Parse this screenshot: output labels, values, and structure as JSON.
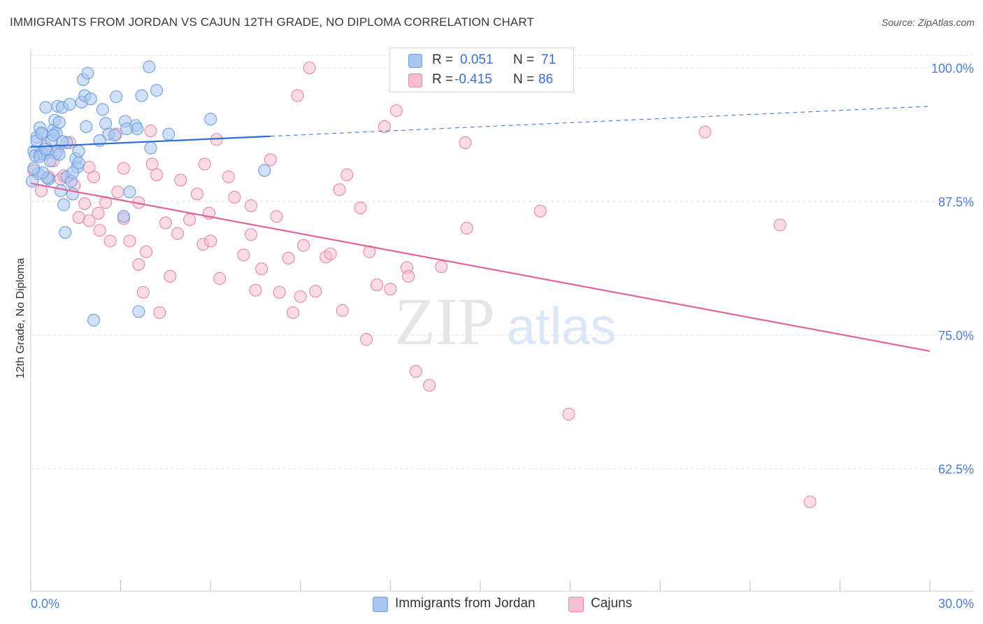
{
  "chart_data": {
    "type": "scatter",
    "title": "IMMIGRANTS FROM JORDAN VS CAJUN 12TH GRADE, NO DIPLOMA CORRELATION CHART",
    "source": "Source: ZipAtlas.com",
    "xlabel": "",
    "ylabel": "12th Grade, No Diploma",
    "xlim": [
      0,
      30
    ],
    "ylim": [
      50,
      101
    ],
    "x_tick_labels": {
      "left": "0.0%",
      "right": "30.0%"
    },
    "y_ticks": [
      {
        "value": 100,
        "label": "100.0%"
      },
      {
        "value": 87.5,
        "label": "87.5%"
      },
      {
        "value": 75,
        "label": "75.0%"
      },
      {
        "value": 62.5,
        "label": "62.5%"
      }
    ],
    "watermark": {
      "zip": "ZIP",
      "atlas": "atlas"
    },
    "legend_stats": [
      {
        "r_label": "R =",
        "r_value": "0.051",
        "n_label": "N =",
        "n_value": "71"
      },
      {
        "r_label": "R =",
        "r_value": "-0.415",
        "n_label": "N =",
        "n_value": "86"
      }
    ],
    "series": [
      {
        "name": "Immigrants from Jordan",
        "color": "#6f9fe0",
        "fill": "#a9c6f0",
        "line_color": "#2f6fd0",
        "trend": {
          "x0": 0,
          "y0": 92.6,
          "x1": 8,
          "y1": 93.6,
          "dash_x1": 30,
          "dash_y1": 96.4
        },
        "points": [
          [
            0.1,
            92.2
          ],
          [
            0.15,
            91.8
          ],
          [
            0.2,
            93.5
          ],
          [
            0.25,
            90.1
          ],
          [
            0.3,
            94.4
          ],
          [
            0.35,
            92.0
          ],
          [
            0.4,
            93.8
          ],
          [
            0.45,
            91.9
          ],
          [
            0.5,
            96.3
          ],
          [
            0.55,
            92.1
          ],
          [
            0.6,
            89.6
          ],
          [
            0.7,
            93.2
          ],
          [
            0.75,
            94.2
          ],
          [
            0.8,
            95.1
          ],
          [
            0.85,
            93.9
          ],
          [
            0.9,
            96.4
          ],
          [
            0.95,
            94.9
          ],
          [
            1.0,
            88.5
          ],
          [
            1.05,
            96.3
          ],
          [
            1.1,
            87.2
          ],
          [
            1.15,
            84.6
          ],
          [
            1.2,
            89.8
          ],
          [
            1.3,
            96.6
          ],
          [
            1.35,
            89.4
          ],
          [
            1.4,
            88.2
          ],
          [
            1.5,
            91.5
          ],
          [
            1.55,
            90.7
          ],
          [
            1.6,
            91.1
          ],
          [
            1.7,
            96.8
          ],
          [
            1.75,
            98.9
          ],
          [
            1.8,
            97.4
          ],
          [
            1.85,
            94.5
          ],
          [
            1.9,
            99.5
          ],
          [
            2.1,
            76.4
          ],
          [
            2.4,
            96.1
          ],
          [
            2.5,
            94.8
          ],
          [
            2.6,
            93.8
          ],
          [
            2.8,
            93.7
          ],
          [
            2.85,
            97.3
          ],
          [
            3.1,
            86.1
          ],
          [
            3.15,
            95.0
          ],
          [
            3.3,
            88.4
          ],
          [
            3.5,
            94.6
          ],
          [
            3.55,
            94.3
          ],
          [
            3.6,
            77.2
          ],
          [
            3.7,
            97.4
          ],
          [
            3.95,
            100.1
          ],
          [
            4.0,
            92.5
          ],
          [
            4.2,
            97.9
          ],
          [
            4.6,
            93.8
          ],
          [
            6.0,
            95.2
          ],
          [
            7.8,
            90.4
          ],
          [
            0.05,
            89.4
          ],
          [
            0.3,
            91.7
          ],
          [
            0.55,
            89.7
          ],
          [
            0.85,
            92.0
          ],
          [
            1.2,
            93.0
          ],
          [
            0.65,
            91.3
          ],
          [
            1.6,
            92.2
          ],
          [
            2.3,
            93.2
          ],
          [
            0.4,
            90.2
          ],
          [
            0.95,
            91.9
          ],
          [
            1.05,
            93.1
          ],
          [
            0.75,
            93.7
          ],
          [
            0.2,
            93.2
          ],
          [
            0.5,
            92.4
          ],
          [
            1.4,
            90.2
          ],
          [
            0.1,
            90.6
          ],
          [
            3.2,
            94.3
          ],
          [
            0.35,
            93.9
          ],
          [
            2.0,
            97.1
          ]
        ]
      },
      {
        "name": "Cajuns",
        "color": "#e887a8",
        "fill": "#f5bfd1",
        "line_color": "#e0649a",
        "trend": {
          "x0": 0,
          "y0": 89.2,
          "x1": 30,
          "y1": 73.5
        },
        "points": [
          [
            0.1,
            90.4
          ],
          [
            0.3,
            91.9
          ],
          [
            0.5,
            92.6
          ],
          [
            0.6,
            89.8
          ],
          [
            0.75,
            91.3
          ],
          [
            0.9,
            92.3
          ],
          [
            1.0,
            89.6
          ],
          [
            1.1,
            89.9
          ],
          [
            1.3,
            93.0
          ],
          [
            1.45,
            89.0
          ],
          [
            1.6,
            86.0
          ],
          [
            1.8,
            87.3
          ],
          [
            1.95,
            85.7
          ],
          [
            2.1,
            89.8
          ],
          [
            2.3,
            84.8
          ],
          [
            2.5,
            87.4
          ],
          [
            2.65,
            83.8
          ],
          [
            2.85,
            93.8
          ],
          [
            2.9,
            88.4
          ],
          [
            3.1,
            85.9
          ],
          [
            3.3,
            83.8
          ],
          [
            3.6,
            87.4
          ],
          [
            3.75,
            79.0
          ],
          [
            3.85,
            82.8
          ],
          [
            4.0,
            94.1
          ],
          [
            4.2,
            90.0
          ],
          [
            4.3,
            77.1
          ],
          [
            4.5,
            85.5
          ],
          [
            4.65,
            80.5
          ],
          [
            4.9,
            84.5
          ],
          [
            5.0,
            89.5
          ],
          [
            5.3,
            85.8
          ],
          [
            5.55,
            88.2
          ],
          [
            5.75,
            83.5
          ],
          [
            5.8,
            91.0
          ],
          [
            6.0,
            83.8
          ],
          [
            6.3,
            80.3
          ],
          [
            6.6,
            89.8
          ],
          [
            6.8,
            87.9
          ],
          [
            7.1,
            82.5
          ],
          [
            7.35,
            84.4
          ],
          [
            7.5,
            79.2
          ],
          [
            7.7,
            81.2
          ],
          [
            8.0,
            91.4
          ],
          [
            8.2,
            86.1
          ],
          [
            8.3,
            79.0
          ],
          [
            8.6,
            82.2
          ],
          [
            8.75,
            77.1
          ],
          [
            8.9,
            97.4
          ],
          [
            9.1,
            83.4
          ],
          [
            9.3,
            100.0
          ],
          [
            9.5,
            79.1
          ],
          [
            9.85,
            82.3
          ],
          [
            10.3,
            88.6
          ],
          [
            10.55,
            90.0
          ],
          [
            11.0,
            86.9
          ],
          [
            11.3,
            82.8
          ],
          [
            11.55,
            79.7
          ],
          [
            11.8,
            94.5
          ],
          [
            12.0,
            79.3
          ],
          [
            12.2,
            96.0
          ],
          [
            12.55,
            81.3
          ],
          [
            12.85,
            71.6
          ],
          [
            13.3,
            70.3
          ],
          [
            14.5,
            93.0
          ],
          [
            14.55,
            85.0
          ],
          [
            17.0,
            86.6
          ],
          [
            17.95,
            67.6
          ],
          [
            22.5,
            94.0
          ],
          [
            25.0,
            85.3
          ],
          [
            26.0,
            59.4
          ],
          [
            3.6,
            81.6
          ],
          [
            5.95,
            86.4
          ],
          [
            7.35,
            87.1
          ],
          [
            10.0,
            82.6
          ],
          [
            9.0,
            78.6
          ],
          [
            10.4,
            77.3
          ],
          [
            4.05,
            91.0
          ],
          [
            2.25,
            86.4
          ],
          [
            1.95,
            90.7
          ],
          [
            6.2,
            93.3
          ],
          [
            13.7,
            81.4
          ],
          [
            11.2,
            74.6
          ],
          [
            3.1,
            90.6
          ],
          [
            0.35,
            88.5
          ],
          [
            12.6,
            80.5
          ]
        ]
      }
    ]
  }
}
